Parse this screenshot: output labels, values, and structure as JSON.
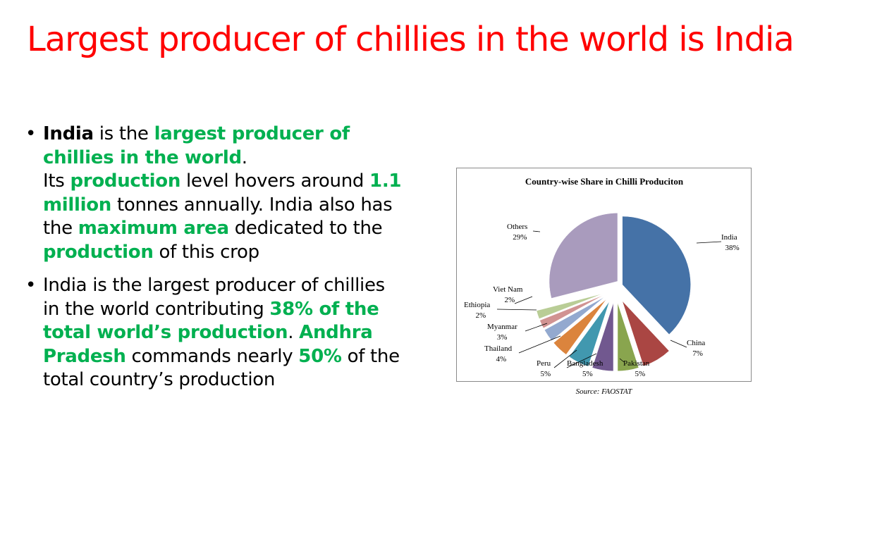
{
  "slide": {
    "title": "Largest producer of chillies in the world is India"
  },
  "bullets": [
    {
      "segments": [
        {
          "text": "India",
          "style": "bold"
        },
        {
          "text": " is the ",
          "style": "plain"
        },
        {
          "text": "largest producer of chillies in the world",
          "style": "green"
        },
        {
          "text": ".",
          "style": "plain"
        },
        {
          "text": "\n",
          "style": "break"
        },
        {
          "text": "Its ",
          "style": "plain"
        },
        {
          "text": "production",
          "style": "green"
        },
        {
          "text": " level hovers around ",
          "style": "plain"
        },
        {
          "text": "1.1 million",
          "style": "green"
        },
        {
          "text": " tonnes annually. India also has the ",
          "style": "plain"
        },
        {
          "text": "maximum area",
          "style": "green"
        },
        {
          "text": " dedicated to the ",
          "style": "plain"
        },
        {
          "text": "production",
          "style": "green"
        },
        {
          "text": " of this crop",
          "style": "plain"
        }
      ]
    },
    {
      "segments": [
        {
          "text": "India is the largest producer of chillies in the world contributing ",
          "style": "plain"
        },
        {
          "text": "38% of the total world’s production",
          "style": "green"
        },
        {
          "text": ". ",
          "style": "plain"
        },
        {
          "text": "Andhra Pradesh",
          "style": "green"
        },
        {
          "text": " commands nearly ",
          "style": "plain"
        },
        {
          "text": "50%",
          "style": "green"
        },
        {
          "text": " of the total country’s production",
          "style": "plain"
        }
      ]
    }
  ],
  "bullet_glyph": "•",
  "chart_source": "Source: FAOSTAT",
  "chart_data": {
    "type": "pie",
    "title": "Country-wise Share in Chilli Produciton",
    "exploded": true,
    "legend": "none",
    "slices": [
      {
        "label": "India",
        "value": 38,
        "display": "38%",
        "color": "#4572a7"
      },
      {
        "label": "China",
        "value": 7,
        "display": "7%",
        "color": "#aa4643"
      },
      {
        "label": "Pakistan",
        "value": 5,
        "display": "5%",
        "color": "#89a54e"
      },
      {
        "label": "Bangladesh",
        "value": 5,
        "display": "5%",
        "color": "#71588f"
      },
      {
        "label": "Peru",
        "value": 5,
        "display": "5%",
        "color": "#4198af"
      },
      {
        "label": "Thailand",
        "value": 4,
        "display": "4%",
        "color": "#db843d"
      },
      {
        "label": "Myanmar",
        "value": 3,
        "display": "3%",
        "color": "#93a9cf"
      },
      {
        "label": "Ethiopia",
        "value": 2,
        "display": "2%",
        "color": "#d19392"
      },
      {
        "label": "Viet Nam",
        "value": 2,
        "display": "2%",
        "color": "#b9cd96"
      },
      {
        "label": "Others",
        "value": 29,
        "display": "29%",
        "color": "#a99bbd"
      }
    ]
  }
}
